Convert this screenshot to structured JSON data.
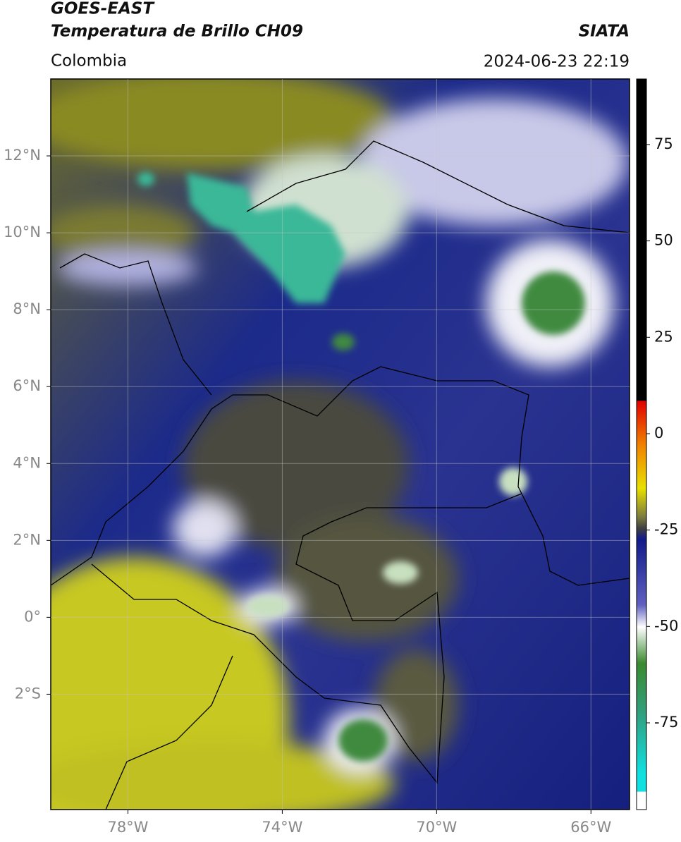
{
  "header": {
    "title": "GOES-EAST",
    "subtitle": "Temperatura de Brillo CH09",
    "source": "SIATA",
    "region": "Colombia",
    "datetime": "2024-06-23 22:19"
  },
  "map": {
    "xlim": [
      -80,
      -65
    ],
    "ylim": [
      -5,
      14
    ],
    "xticks": [
      {
        "value": -78,
        "label": "78°W"
      },
      {
        "value": -74,
        "label": "74°W"
      },
      {
        "value": -70,
        "label": "70°W"
      },
      {
        "value": -66,
        "label": "66°W"
      }
    ],
    "yticks": [
      {
        "value": 12,
        "label": "12°N"
      },
      {
        "value": 10,
        "label": "10°N"
      },
      {
        "value": 8,
        "label": "8°N"
      },
      {
        "value": 6,
        "label": "6°N"
      },
      {
        "value": 4,
        "label": "4°N"
      },
      {
        "value": 2,
        "label": "2°N"
      },
      {
        "value": 0,
        "label": "0°"
      },
      {
        "value": -2,
        "label": "2°S"
      }
    ],
    "grid": true
  },
  "colorbar": {
    "lim": [
      -97.5,
      92
    ],
    "ticks": [
      75,
      50,
      25,
      0,
      -25,
      -50,
      -75
    ]
  }
}
